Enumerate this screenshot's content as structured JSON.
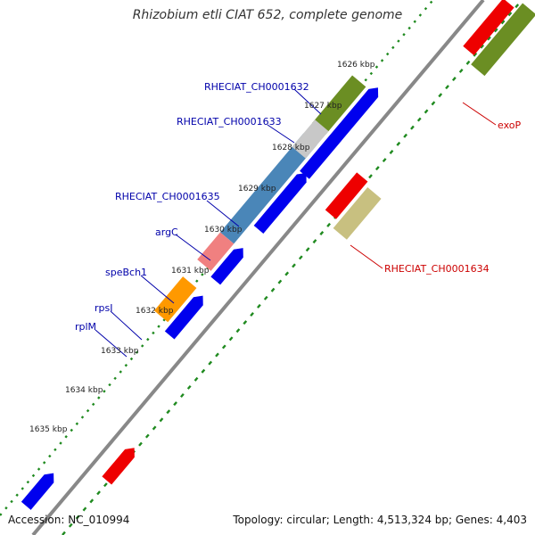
{
  "title": "Rhizobium etli CIAT 652, complete genome",
  "footer": {
    "accession": "Accession: NC_010994",
    "info": "Topology: circular; Length: 4,513,324 bp; Genes: 4,403"
  },
  "colors": {
    "backbone": "#888888",
    "ticks": "#1f8a1f",
    "cds": "#0000ee",
    "rna": "#ee0000",
    "label_blue": "#0000aa",
    "label_red": "#cc0000",
    "olive": "#6b8e23",
    "khaki": "#c8c080",
    "steel": "#4a86b8",
    "silver": "#c8c8c8",
    "pink": "#f08080",
    "orange": "#ff9900"
  },
  "scale_labels": [
    "1626 kbp",
    "1627 kbp",
    "1628 kbp",
    "1629 kbp",
    "1630 kbp",
    "1631 kbp",
    "1632 kbp",
    "1633 kbp",
    "1634 kbp",
    "1635 kbp"
  ],
  "gene_labels": [
    {
      "text": "RHECIAT_CH0001632",
      "color": "label_blue"
    },
    {
      "text": "RHECIAT_CH0001633",
      "color": "label_blue"
    },
    {
      "text": "RHECIAT_CH0001635",
      "color": "label_blue"
    },
    {
      "text": "argC",
      "color": "label_blue"
    },
    {
      "text": "speBch1",
      "color": "label_blue"
    },
    {
      "text": "rpsI",
      "color": "label_blue"
    },
    {
      "text": "rplM",
      "color": "label_blue"
    },
    {
      "text": "exoP",
      "color": "label_red"
    },
    {
      "text": "RHECIAT_CH0001634",
      "color": "label_red"
    }
  ]
}
